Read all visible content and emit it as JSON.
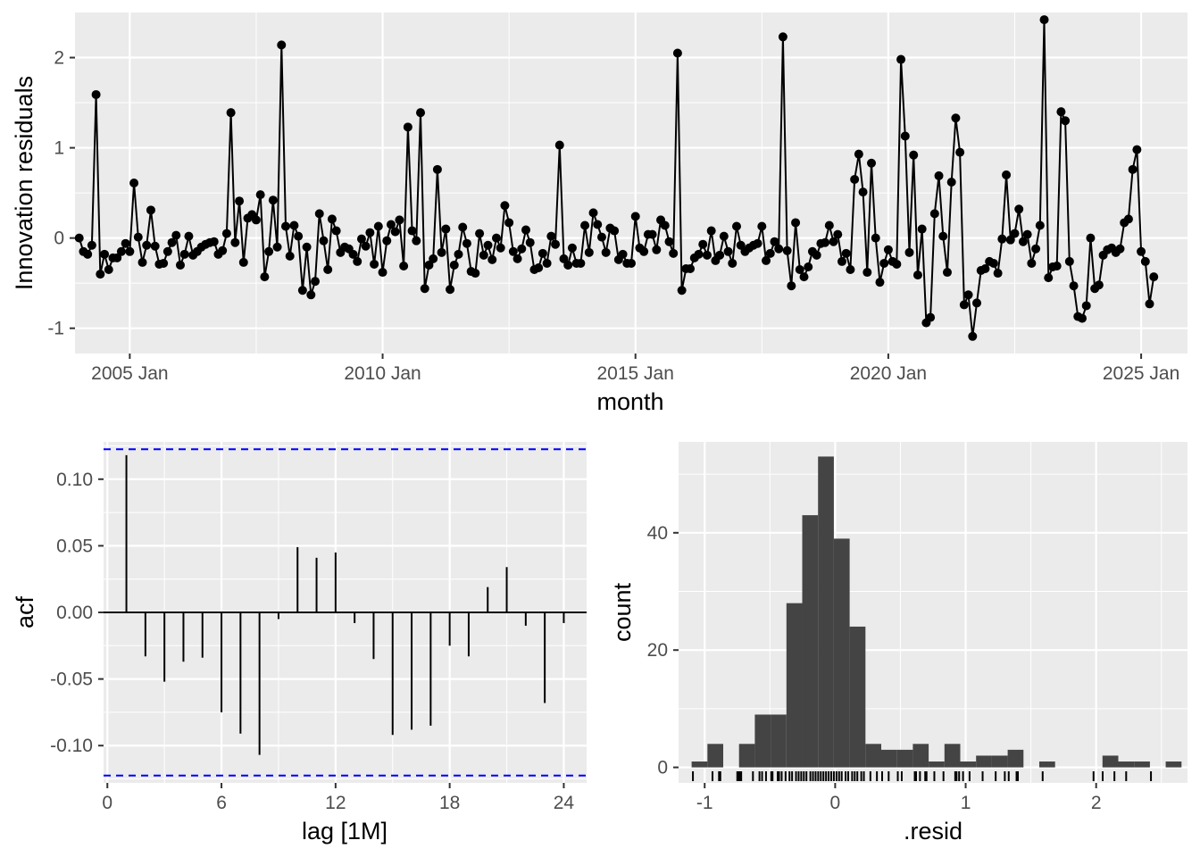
{
  "chart_data": [
    {
      "type": "line",
      "xlabel": "month",
      "ylabel": "Innovation residuals",
      "x_tick_labels": [
        "2005 Jan",
        "2010 Jan",
        "2015 Jan",
        "2020 Jan",
        "2025 Jan"
      ],
      "y_tick_labels": [
        "-1",
        "0",
        "1",
        "2"
      ],
      "xlim": [
        "2003-12",
        "2025-12"
      ],
      "ylim": [
        -1.28,
        2.5
      ],
      "grid": true,
      "markers": true,
      "series": [
        {
          "x": [
            "2004-01",
            "2004-02",
            "2004-03",
            "2004-04",
            "2004-05",
            "2004-06",
            "2004-07",
            "2004-08",
            "2004-09",
            "2004-10",
            "2004-11",
            "2004-12",
            "2005-01",
            "2005-02",
            "2005-03",
            "2005-04",
            "2005-05",
            "2005-06",
            "2005-07",
            "2005-08",
            "2005-09",
            "2005-10",
            "2005-11",
            "2005-12",
            "2006-01",
            "2006-02",
            "2006-03",
            "2006-04",
            "2006-05",
            "2006-06",
            "2006-07",
            "2006-08",
            "2006-09",
            "2006-10",
            "2006-11",
            "2006-12",
            "2007-01",
            "2007-02",
            "2007-03",
            "2007-04",
            "2007-05",
            "2007-06",
            "2007-07",
            "2007-08",
            "2007-09",
            "2007-10",
            "2007-11",
            "2007-12",
            "2008-01",
            "2008-02",
            "2008-03",
            "2008-04",
            "2008-05",
            "2008-06",
            "2008-07",
            "2008-08",
            "2008-09",
            "2008-10",
            "2008-11",
            "2008-12",
            "2009-01",
            "2009-02",
            "2009-03",
            "2009-04",
            "2009-05",
            "2009-06",
            "2009-07",
            "2009-08",
            "2009-09",
            "2009-10",
            "2009-11",
            "2009-12",
            "2010-01",
            "2010-02",
            "2010-03",
            "2010-04",
            "2010-05",
            "2010-06",
            "2010-07",
            "2010-08",
            "2010-09",
            "2010-10",
            "2010-11",
            "2010-12",
            "2011-01",
            "2011-02",
            "2011-03",
            "2011-04",
            "2011-05",
            "2011-06",
            "2011-07",
            "2011-08",
            "2011-09",
            "2011-10",
            "2011-11",
            "2011-12",
            "2012-01",
            "2012-02",
            "2012-03",
            "2012-04",
            "2012-05",
            "2012-06",
            "2012-07",
            "2012-08",
            "2012-09",
            "2012-10",
            "2012-11",
            "2012-12",
            "2013-01",
            "2013-02",
            "2013-03",
            "2013-04",
            "2013-05",
            "2013-06",
            "2013-07",
            "2013-08",
            "2013-09",
            "2013-10",
            "2013-11",
            "2013-12",
            "2014-01",
            "2014-02",
            "2014-03",
            "2014-04",
            "2014-05",
            "2014-06",
            "2014-07",
            "2014-08",
            "2014-09",
            "2014-10",
            "2014-11",
            "2014-12",
            "2015-01",
            "2015-02",
            "2015-03",
            "2015-04",
            "2015-05",
            "2015-06",
            "2015-07",
            "2015-08",
            "2015-09",
            "2015-10",
            "2015-11",
            "2015-12",
            "2016-01",
            "2016-02",
            "2016-03",
            "2016-04",
            "2016-05",
            "2016-06",
            "2016-07",
            "2016-08",
            "2016-09",
            "2016-10",
            "2016-11",
            "2016-12",
            "2017-01",
            "2017-02",
            "2017-03",
            "2017-04",
            "2017-05",
            "2017-06",
            "2017-07",
            "2017-08",
            "2017-09",
            "2017-10",
            "2017-11",
            "2017-12",
            "2018-01",
            "2018-02",
            "2018-03",
            "2018-04",
            "2018-05",
            "2018-06",
            "2018-07",
            "2018-08",
            "2018-09",
            "2018-10",
            "2018-11",
            "2018-12",
            "2019-01",
            "2019-02",
            "2019-03",
            "2019-04",
            "2019-05",
            "2019-06",
            "2019-07",
            "2019-08",
            "2019-09",
            "2019-10",
            "2019-11",
            "2019-12",
            "2020-01",
            "2020-02",
            "2020-03",
            "2020-04",
            "2020-05",
            "2020-06",
            "2020-07",
            "2020-08",
            "2020-09",
            "2020-10",
            "2020-11",
            "2020-12",
            "2021-01",
            "2021-02",
            "2021-03",
            "2021-04",
            "2021-05",
            "2021-06",
            "2021-07",
            "2021-08",
            "2021-09",
            "2021-10",
            "2021-11",
            "2021-12",
            "2022-01",
            "2022-02",
            "2022-03",
            "2022-04",
            "2022-05",
            "2022-06",
            "2022-07",
            "2022-08",
            "2022-09",
            "2022-10",
            "2022-11",
            "2022-12",
            "2023-01",
            "2023-02",
            "2023-03",
            "2023-04",
            "2023-05",
            "2023-06",
            "2023-07",
            "2023-08",
            "2023-09",
            "2023-10",
            "2023-11",
            "2023-12",
            "2024-01",
            "2024-02",
            "2024-03",
            "2024-04",
            "2024-05",
            "2024-06",
            "2024-07",
            "2024-08",
            "2024-09",
            "2024-10",
            "2024-11",
            "2024-12",
            "2025-01",
            "2025-02",
            "2025-03",
            "2025-04"
          ],
          "values": [
            0.0,
            -0.15,
            -0.18,
            -0.08,
            1.59,
            -0.4,
            -0.18,
            -0.35,
            -0.22,
            -0.22,
            -0.15,
            -0.06,
            -0.15,
            0.61,
            0.01,
            -0.27,
            -0.08,
            0.31,
            -0.09,
            -0.29,
            -0.28,
            -0.15,
            -0.05,
            0.03,
            -0.3,
            -0.18,
            0.02,
            -0.19,
            -0.15,
            -0.1,
            -0.07,
            -0.05,
            -0.04,
            -0.18,
            -0.14,
            0.05,
            1.39,
            -0.05,
            0.41,
            -0.27,
            0.22,
            0.26,
            0.2,
            0.48,
            -0.43,
            -0.15,
            0.42,
            -0.1,
            2.14,
            0.13,
            -0.2,
            0.14,
            0.02,
            -0.58,
            -0.1,
            -0.63,
            -0.48,
            0.27,
            -0.03,
            -0.35,
            0.21,
            0.08,
            -0.16,
            -0.1,
            -0.12,
            -0.18,
            -0.26,
            -0.01,
            -0.09,
            0.06,
            -0.29,
            0.13,
            -0.38,
            -0.03,
            0.15,
            0.07,
            0.2,
            -0.31,
            1.23,
            0.08,
            -0.03,
            1.39,
            -0.56,
            -0.3,
            -0.23,
            0.76,
            -0.16,
            0.1,
            -0.57,
            -0.3,
            -0.18,
            0.12,
            -0.06,
            -0.37,
            -0.39,
            0.05,
            -0.19,
            -0.08,
            -0.24,
            0.0,
            -0.11,
            0.36,
            0.17,
            -0.15,
            -0.23,
            -0.12,
            0.09,
            -0.05,
            -0.35,
            -0.33,
            -0.17,
            -0.28,
            0.02,
            -0.07,
            1.03,
            -0.23,
            -0.3,
            -0.11,
            -0.28,
            -0.28,
            0.14,
            -0.16,
            0.28,
            0.15,
            0.01,
            -0.16,
            0.11,
            0.08,
            -0.24,
            -0.18,
            -0.28,
            -0.28,
            0.24,
            -0.11,
            -0.15,
            0.04,
            0.04,
            -0.13,
            0.2,
            0.14,
            -0.04,
            -0.17,
            2.05,
            -0.58,
            -0.34,
            -0.34,
            -0.22,
            -0.18,
            -0.07,
            -0.19,
            0.08,
            -0.25,
            -0.19,
            0.02,
            -0.15,
            -0.28,
            0.13,
            -0.08,
            -0.15,
            -0.11,
            -0.08,
            -0.06,
            0.13,
            -0.25,
            -0.17,
            -0.04,
            -0.12,
            2.23,
            -0.14,
            -0.53,
            0.17,
            -0.35,
            -0.43,
            -0.32,
            -0.15,
            -0.19,
            -0.06,
            -0.05,
            0.14,
            -0.04,
            0.04,
            -0.26,
            -0.17,
            -0.35,
            0.65,
            0.93,
            0.51,
            -0.38,
            0.83,
            0.0,
            -0.49,
            -0.28,
            -0.13,
            -0.26,
            -0.29,
            1.98,
            1.13,
            -0.16,
            0.92,
            -0.41,
            0.1,
            -0.94,
            -0.88,
            0.27,
            0.69,
            0.02,
            -0.38,
            0.62,
            1.33,
            0.95,
            -0.74,
            -0.63,
            -1.09,
            -0.72,
            -0.36,
            -0.34,
            -0.26,
            -0.28,
            -0.39,
            -0.01,
            0.7,
            -0.02,
            0.05,
            0.32,
            -0.04,
            0.04,
            -0.28,
            -0.12,
            0.14,
            2.42,
            -0.44,
            -0.32,
            -0.31,
            1.4,
            1.3,
            -0.26,
            -0.53,
            -0.87,
            -0.89,
            -0.75,
            0.0,
            -0.56,
            -0.52,
            -0.19,
            -0.13,
            -0.11,
            -0.16,
            -0.12,
            0.17,
            0.21,
            0.76,
            0.98,
            -0.15,
            -0.26,
            -0.73,
            -0.43
          ]
        }
      ]
    },
    {
      "type": "bar",
      "xlabel": "lag [1M]",
      "ylabel": "acf",
      "x_tick_labels": [
        "0",
        "6",
        "12",
        "18",
        "24"
      ],
      "y_tick_labels": [
        "-0.10",
        "-0.05",
        "0.00",
        "0.05",
        "0.10"
      ],
      "xlim": [
        -0.2,
        25.2
      ],
      "ylim": [
        -0.128,
        0.128
      ],
      "grid": true,
      "categories": [
        1,
        2,
        3,
        4,
        5,
        6,
        7,
        8,
        9,
        10,
        11,
        12,
        13,
        14,
        15,
        16,
        17,
        18,
        19,
        20,
        21,
        22,
        23,
        24
      ],
      "values": [
        0.118,
        -0.033,
        -0.052,
        -0.037,
        -0.034,
        -0.075,
        -0.091,
        -0.107,
        -0.005,
        0.049,
        0.041,
        0.045,
        -0.008,
        -0.035,
        -0.092,
        -0.088,
        -0.085,
        -0.025,
        -0.033,
        0.019,
        0.034,
        -0.01,
        -0.068,
        -0.008
      ],
      "confidence_bounds": [
        -0.1225,
        0.1225
      ],
      "bound_color": "#0000ff"
    },
    {
      "type": "bar",
      "xlabel": ".resid",
      "ylabel": "count",
      "x_tick_labels": [
        "-1",
        "0",
        "1",
        "2"
      ],
      "y_tick_labels": [
        "0",
        "20",
        "40"
      ],
      "xlim": [
        -1.2,
        2.7
      ],
      "ylim": [
        -2.65,
        55.5
      ],
      "grid": true,
      "histogram": {
        "bin_start": -1.1,
        "bin_width": 0.1211,
        "counts": [
          1,
          4,
          0,
          4,
          9,
          9,
          28,
          43,
          53,
          39,
          24,
          4,
          3,
          3,
          4,
          1,
          4,
          1,
          2,
          2,
          3,
          0,
          1,
          0,
          0,
          0,
          2,
          1,
          1,
          0,
          1
        ]
      },
      "rug_values": [
        -1.09,
        -0.94,
        -0.89,
        -0.88,
        -0.75,
        -0.74,
        -0.73,
        -0.72,
        -0.63,
        -0.58,
        -0.56,
        -0.53,
        -0.49,
        -0.48,
        -0.44,
        -0.43,
        -0.41,
        -0.38,
        -0.35,
        -0.33,
        -0.3,
        -0.28,
        -0.26,
        -0.24,
        -0.22,
        -0.19,
        -0.17,
        -0.15,
        -0.13,
        -0.11,
        -0.09,
        -0.07,
        -0.05,
        -0.03,
        -0.01,
        0.01,
        0.03,
        0.05,
        0.08,
        0.1,
        0.13,
        0.15,
        0.17,
        0.2,
        0.22,
        0.27,
        0.32,
        0.36,
        0.41,
        0.48,
        0.51,
        0.61,
        0.62,
        0.65,
        0.69,
        0.7,
        0.76,
        0.83,
        0.92,
        0.93,
        0.95,
        0.98,
        1.03,
        1.13,
        1.23,
        1.3,
        1.33,
        1.39,
        1.4,
        1.59,
        1.98,
        2.05,
        2.14,
        2.23,
        2.42
      ]
    }
  ]
}
